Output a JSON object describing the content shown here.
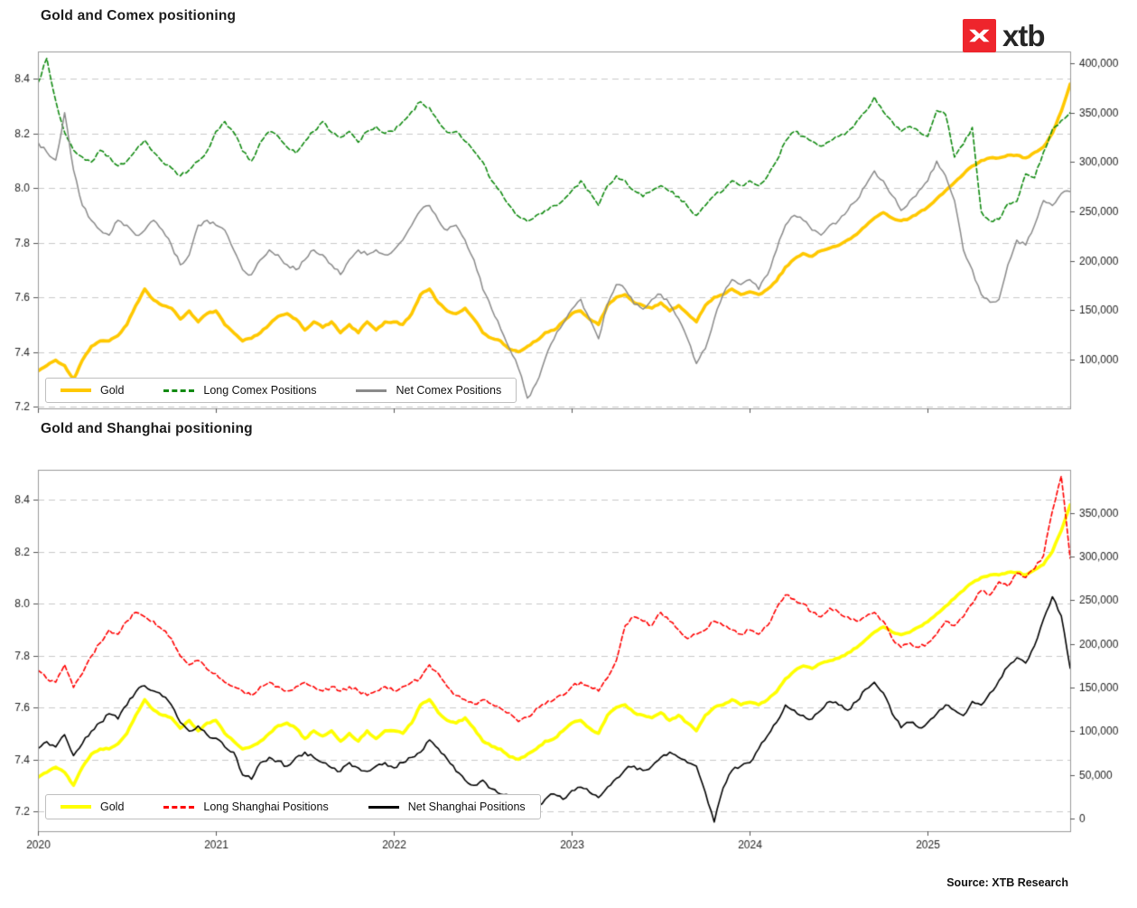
{
  "page": {
    "logo_text": "xtb",
    "logo_color": "#EE252C",
    "source": "Source: XTB Research"
  },
  "chart_data": [
    {
      "type": "line",
      "title": "Gold and Comex positioning",
      "x_start": 2020,
      "x_step": 0.05,
      "x_axis": {
        "range": [
          2020,
          2025.8
        ],
        "tick_values": [
          2020,
          2021,
          2022,
          2023,
          2024,
          2025
        ],
        "tick_labels": [
          "2020",
          "2021",
          "2022",
          "2023",
          "2024",
          "2025"
        ],
        "show_labels": false
      },
      "left_axis": {
        "range": [
          7.1934,
          8.4992
        ],
        "tick_values": [
          8.4,
          8.2,
          8.0,
          7.8,
          7.6,
          7.4,
          7.2
        ],
        "tick_labels": [
          "8.4",
          "8.2",
          "8.0",
          "7.8",
          "7.6",
          "7.4",
          "7.2"
        ]
      },
      "right_axis": {
        "range": [
          50600,
          411900
        ],
        "tick_values": [
          400000,
          350000,
          300000,
          250000,
          200000,
          150000,
          100000
        ],
        "tick_labels": [
          "400,000",
          "350,000",
          "300,000",
          "250,000",
          "200,000",
          "150,000",
          "100,000"
        ]
      },
      "grid": "horizontal-dashed",
      "legend_position": "lower-left",
      "series": [
        {
          "name": "Gold",
          "axis": "left",
          "color": "#FFC800",
          "width": 3.6,
          "dash": null,
          "jitter": 0.9,
          "value_scale": 1,
          "values": [
            7.33,
            7.35,
            7.37,
            7.35,
            7.3,
            7.37,
            7.42,
            7.44,
            7.44,
            7.46,
            7.5,
            7.57,
            7.63,
            7.59,
            7.57,
            7.56,
            7.52,
            7.55,
            7.51,
            7.54,
            7.55,
            7.5,
            7.47,
            7.44,
            7.45,
            7.47,
            7.5,
            7.53,
            7.54,
            7.52,
            7.48,
            7.51,
            7.49,
            7.51,
            7.47,
            7.5,
            7.47,
            7.51,
            7.48,
            7.51,
            7.51,
            7.5,
            7.54,
            7.61,
            7.63,
            7.58,
            7.55,
            7.54,
            7.56,
            7.52,
            7.47,
            7.45,
            7.44,
            7.41,
            7.4,
            7.42,
            7.44,
            7.47,
            7.48,
            7.51,
            7.54,
            7.55,
            7.52,
            7.5,
            7.57,
            7.6,
            7.61,
            7.58,
            7.57,
            7.56,
            7.58,
            7.55,
            7.57,
            7.54,
            7.51,
            7.57,
            7.6,
            7.61,
            7.63,
            7.61,
            7.62,
            7.61,
            7.63,
            7.66,
            7.71,
            7.74,
            7.76,
            7.75,
            7.77,
            7.78,
            7.79,
            7.81,
            7.83,
            7.86,
            7.89,
            7.91,
            7.89,
            7.88,
            7.89,
            7.91,
            7.93,
            7.96,
            7.99,
            8.02,
            8.05,
            8.08,
            8.1,
            8.11,
            8.11,
            8.12,
            8.12,
            8.11,
            8.13,
            8.15,
            8.2,
            8.28,
            8.38
          ]
        },
        {
          "name": "Long Comex Positions",
          "axis": "right",
          "color": "#118A11",
          "width": 1.6,
          "dash": [
            5,
            3
          ],
          "jitter": 2.0,
          "value_scale": 1000,
          "values": [
            380,
            405,
            362,
            330,
            312,
            305,
            300,
            312,
            306,
            296,
            301,
            312,
            322,
            310,
            300,
            294,
            286,
            292,
            301,
            311,
            331,
            341,
            330,
            311,
            301,
            320,
            331,
            326,
            315,
            309,
            321,
            331,
            341,
            330,
            325,
            331,
            320,
            331,
            336,
            329,
            331,
            341,
            351,
            361,
            355,
            341,
            330,
            331,
            321,
            311,
            300,
            281,
            270,
            256,
            245,
            240,
            246,
            251,
            256,
            261,
            271,
            281,
            270,
            256,
            276,
            286,
            281,
            271,
            265,
            271,
            276,
            270,
            265,
            255,
            246,
            256,
            266,
            271,
            281,
            276,
            281,
            276,
            286,
            301,
            321,
            331,
            326,
            321,
            316,
            321,
            326,
            331,
            341,
            351,
            366,
            351,
            341,
            331,
            336,
            331,
            326,
            352,
            348,
            305,
            318,
            335,
            250,
            240,
            242,
            258,
            260,
            288,
            284,
            310,
            333,
            342,
            350
          ]
        },
        {
          "name": "Net Comex Positions",
          "axis": "right",
          "color": "#8A8A8A",
          "width": 1.5,
          "dash": null,
          "jitter": 2.4,
          "value_scale": 1000,
          "values": [
            320,
            310,
            302,
            350,
            292,
            256,
            241,
            231,
            226,
            241,
            236,
            226,
            231,
            241,
            231,
            216,
            196,
            206,
            236,
            241,
            236,
            231,
            211,
            191,
            186,
            201,
            211,
            206,
            196,
            191,
            201,
            211,
            206,
            196,
            186,
            201,
            211,
            206,
            211,
            206,
            211,
            221,
            236,
            251,
            256,
            241,
            231,
            236,
            221,
            201,
            171,
            151,
            131,
            111,
            91,
            61,
            76,
            101,
            121,
            136,
            151,
            161,
            141,
            121,
            156,
            176,
            171,
            156,
            151,
            161,
            166,
            156,
            141,
            121,
            96,
            111,
            141,
            166,
            181,
            176,
            181,
            171,
            186,
            211,
            236,
            246,
            241,
            231,
            226,
            236,
            241,
            251,
            261,
            276,
            291,
            281,
            266,
            251,
            261,
            271,
            281,
            301,
            286,
            261,
            211,
            191,
            166,
            158,
            161,
            196,
            221,
            216,
            236,
            261,
            256,
            268,
            270
          ]
        }
      ]
    },
    {
      "type": "line",
      "title": "Gold and Shanghai positioning",
      "x_start": 2020,
      "x_step": 0.05,
      "x_axis": {
        "range": [
          2020,
          2025.8
        ],
        "tick_values": [
          2020,
          2021,
          2022,
          2023,
          2024,
          2025
        ],
        "tick_labels": [
          "2020",
          "2021",
          "2022",
          "2023",
          "2024",
          "2025"
        ],
        "show_labels": true
      },
      "left_axis": {
        "range": [
          7.1235,
          8.5148
        ],
        "tick_values": [
          8.4,
          8.2,
          8.0,
          7.8,
          7.6,
          7.4,
          7.2
        ],
        "tick_labels": [
          "8.4",
          "8.2",
          "8.0",
          "7.8",
          "7.6",
          "7.4",
          "7.2"
        ]
      },
      "right_axis": {
        "range": [
          -14500,
          399300
        ],
        "tick_values": [
          350000,
          300000,
          250000,
          200000,
          150000,
          100000,
          50000,
          0
        ],
        "tick_labels": [
          "350,000",
          "300,000",
          "250,000",
          "200,000",
          "150,000",
          "100,000",
          "50,000",
          "0"
        ]
      },
      "grid": "horizontal-dashed",
      "legend_position": "lower-left",
      "series": [
        {
          "name": "Gold",
          "axis": "left",
          "color": "#FFFF00",
          "width": 3.6,
          "dash": null,
          "jitter": 0.9,
          "value_scale": 1,
          "values": [
            7.33,
            7.35,
            7.37,
            7.35,
            7.3,
            7.37,
            7.42,
            7.44,
            7.44,
            7.46,
            7.5,
            7.57,
            7.63,
            7.59,
            7.57,
            7.56,
            7.52,
            7.55,
            7.51,
            7.54,
            7.55,
            7.5,
            7.47,
            7.44,
            7.45,
            7.47,
            7.5,
            7.53,
            7.54,
            7.52,
            7.48,
            7.51,
            7.49,
            7.51,
            7.47,
            7.5,
            7.47,
            7.51,
            7.48,
            7.51,
            7.51,
            7.5,
            7.54,
            7.61,
            7.63,
            7.58,
            7.55,
            7.54,
            7.56,
            7.52,
            7.47,
            7.45,
            7.44,
            7.41,
            7.4,
            7.42,
            7.44,
            7.47,
            7.48,
            7.51,
            7.54,
            7.55,
            7.52,
            7.5,
            7.57,
            7.6,
            7.61,
            7.58,
            7.57,
            7.56,
            7.58,
            7.55,
            7.57,
            7.54,
            7.51,
            7.57,
            7.6,
            7.61,
            7.63,
            7.61,
            7.62,
            7.61,
            7.63,
            7.66,
            7.71,
            7.74,
            7.76,
            7.75,
            7.77,
            7.78,
            7.79,
            7.81,
            7.83,
            7.86,
            7.89,
            7.91,
            7.89,
            7.88,
            7.89,
            7.91,
            7.93,
            7.96,
            7.99,
            8.02,
            8.05,
            8.08,
            8.1,
            8.11,
            8.11,
            8.12,
            8.12,
            8.11,
            8.13,
            8.15,
            8.2,
            8.28,
            8.38
          ]
        },
        {
          "name": "Long Shanghai Positions",
          "axis": "right",
          "color": "#FF0000",
          "width": 1.6,
          "dash": [
            5,
            3
          ],
          "jitter": 2.0,
          "value_scale": 1000,
          "values": [
            170,
            160,
            156,
            176,
            150,
            166,
            186,
            201,
            216,
            211,
            226,
            236,
            231,
            226,
            216,
            206,
            186,
            176,
            181,
            171,
            166,
            156,
            151,
            146,
            141,
            151,
            156,
            151,
            146,
            151,
            156,
            151,
            146,
            151,
            146,
            151,
            146,
            141,
            146,
            151,
            146,
            151,
            156,
            161,
            176,
            166,
            151,
            141,
            136,
            131,
            136,
            131,
            126,
            121,
            111,
            116,
            126,
            131,
            136,
            141,
            151,
            156,
            151,
            146,
            161,
            181,
            221,
            231,
            226,
            221,
            236,
            226,
            216,
            206,
            211,
            216,
            226,
            221,
            216,
            211,
            216,
            211,
            221,
            241,
            256,
            251,
            246,
            236,
            231,
            241,
            236,
            231,
            226,
            231,
            236,
            226,
            206,
            196,
            201,
            196,
            201,
            211,
            226,
            221,
            231,
            246,
            261,
            256,
            271,
            266,
            281,
            276,
            286,
            301,
            352,
            392,
            298
          ]
        },
        {
          "name": "Net Shanghai Positions",
          "axis": "right",
          "color": "#000000",
          "width": 1.6,
          "dash": null,
          "jitter": 2.2,
          "value_scale": 1000,
          "values": [
            80,
            88,
            82,
            96,
            72,
            86,
            100,
            110,
            120,
            114,
            130,
            145,
            152,
            146,
            140,
            130,
            110,
            100,
            106,
            96,
            92,
            82,
            76,
            50,
            45,
            64,
            70,
            66,
            60,
            70,
            76,
            70,
            64,
            58,
            54,
            64,
            58,
            54,
            60,
            64,
            58,
            64,
            70,
            76,
            90,
            80,
            68,
            54,
            44,
            38,
            44,
            34,
            28,
            25,
            12,
            2,
            12,
            22,
            28,
            22,
            32,
            36,
            30,
            24,
            36,
            46,
            56,
            60,
            55,
            60,
            70,
            76,
            70,
            64,
            60,
            30,
            -4,
            35,
            55,
            60,
            64,
            80,
            95,
            110,
            130,
            124,
            118,
            114,
            124,
            134,
            130,
            124,
            134,
            148,
            156,
            144,
            120,
            104,
            110,
            104,
            110,
            120,
            130,
            124,
            118,
            134,
            130,
            144,
            158,
            174,
            184,
            178,
            198,
            228,
            254,
            232,
            172
          ]
        }
      ]
    }
  ]
}
